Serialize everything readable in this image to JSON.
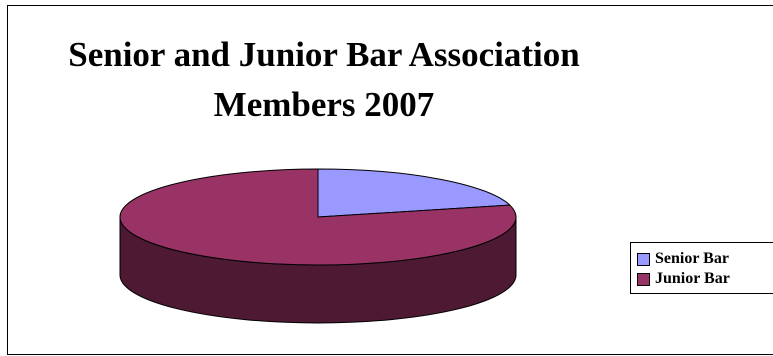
{
  "chart_data": {
    "type": "pie",
    "title_lines": [
      "Senior and Junior Bar Association",
      "Members 2007"
    ],
    "categories": [
      "Senior Bar",
      "Junior Bar"
    ],
    "values": [
      21,
      79
    ],
    "colors": [
      "#9999ff",
      "#993366"
    ],
    "side_colors": [
      "#4d4d80",
      "#4d1933"
    ],
    "style": "3d",
    "legend_position": "right"
  }
}
